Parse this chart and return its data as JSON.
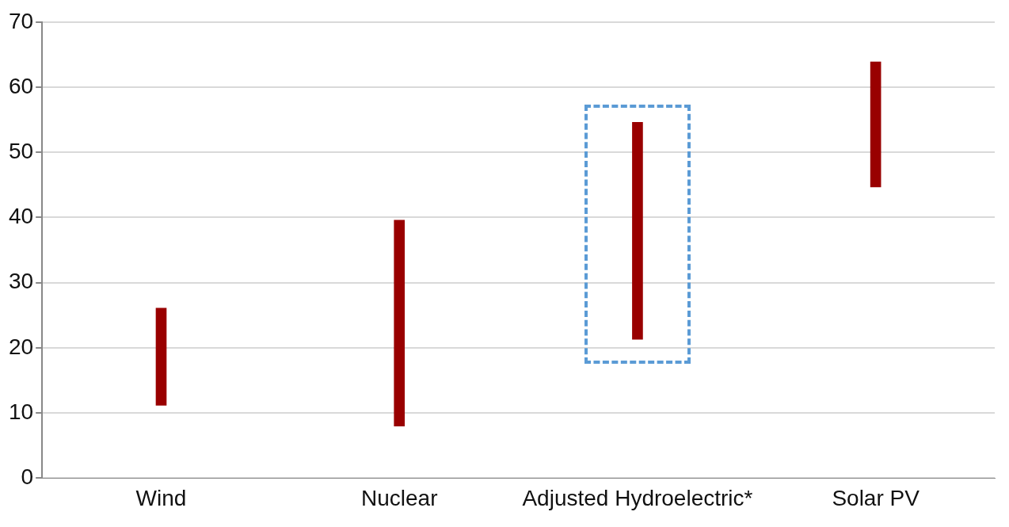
{
  "chart_data": {
    "type": "bar",
    "categories": [
      "Wind",
      "Nuclear",
      "Adjusted Hydroelectric*",
      "Solar PV"
    ],
    "base": [
      11.2,
      8.0,
      21.3,
      44.7
    ],
    "values": [
      14.9,
      31.6,
      33.3,
      19.2
    ],
    "color": "#990000",
    "ylim": [
      0,
      70
    ],
    "yticks": [
      0,
      10,
      20,
      30,
      40,
      50,
      60,
      70
    ],
    "grid": "y"
  }
}
